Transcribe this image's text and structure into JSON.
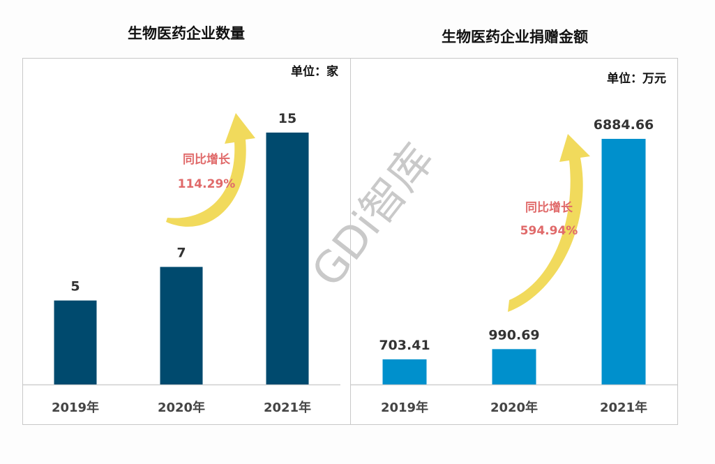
{
  "watermark": "GDi智库",
  "chart_data": [
    {
      "type": "bar",
      "title": "生物医药企业数量",
      "unit_label": "单位：家",
      "categories": [
        "2019年",
        "2020年",
        "2021年"
      ],
      "values": [
        5,
        7,
        15
      ],
      "value_labels": [
        "5",
        "7",
        "15"
      ],
      "ylim": [
        0,
        15
      ],
      "color": "#004a6e",
      "annotation": {
        "label": "同比增长",
        "value": "114.29%"
      }
    },
    {
      "type": "bar",
      "title": "生物医药企业捐赠金额",
      "unit_label": "单位：万元",
      "categories": [
        "2019年",
        "2020年",
        "2021年"
      ],
      "values": [
        703.41,
        990.69,
        6884.66
      ],
      "value_labels": [
        "703.41",
        "990.69",
        "6884.66"
      ],
      "ylim": [
        0,
        6884.66
      ],
      "color": "#0090cc",
      "annotation": {
        "label": "同比增长",
        "value": "594.94%"
      }
    }
  ]
}
